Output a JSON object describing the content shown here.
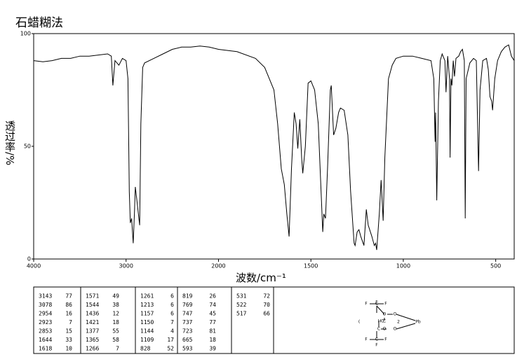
{
  "chart_data": {
    "type": "line",
    "title": "石蜡糊法",
    "xlabel": "波数/cm⁻¹",
    "ylabel": "透过率/%",
    "xlim": [
      4000,
      400
    ],
    "x_break": 2000,
    "xticks": [
      4000,
      3000,
      2000,
      1500,
      1000,
      500
    ],
    "ylim": [
      0,
      100
    ],
    "yticks": [
      0,
      50,
      100
    ],
    "color": "#000000",
    "x": [
      4000,
      3900,
      3800,
      3700,
      3600,
      3500,
      3400,
      3300,
      3200,
      3160,
      3143,
      3120,
      3078,
      3040,
      3000,
      2980,
      2965,
      2954,
      2940,
      2923,
      2910,
      2900,
      2880,
      2853,
      2840,
      2820,
      2800,
      2700,
      2600,
      2500,
      2400,
      2300,
      2200,
      2100,
      2000,
      1900,
      1800,
      1750,
      1700,
      1680,
      1660,
      1644,
      1630,
      1618,
      1605,
      1590,
      1580,
      1571,
      1560,
      1550,
      1544,
      1530,
      1515,
      1500,
      1480,
      1460,
      1445,
      1436,
      1430,
      1421,
      1410,
      1395,
      1390,
      1377,
      1365,
      1350,
      1340,
      1320,
      1300,
      1285,
      1266,
      1261,
      1250,
      1240,
      1230,
      1213,
      1200,
      1190,
      1170,
      1157,
      1150,
      1144,
      1130,
      1120,
      1109,
      1100,
      1080,
      1060,
      1040,
      1000,
      950,
      900,
      850,
      835,
      828,
      825,
      819,
      810,
      800,
      790,
      775,
      769,
      760,
      750,
      747,
      742,
      737,
      730,
      723,
      715,
      700,
      690,
      680,
      670,
      665,
      660,
      640,
      620,
      605,
      593,
      585,
      570,
      550,
      540,
      531,
      522,
      517,
      505,
      490,
      470,
      450,
      430,
      415,
      400
    ],
    "values": [
      88,
      87.5,
      88,
      89,
      89,
      90,
      90,
      90.5,
      91,
      90,
      77,
      88,
      86,
      89,
      88,
      80,
      30,
      16,
      18,
      7,
      20,
      32,
      25,
      15,
      60,
      85,
      87,
      89,
      91,
      93,
      94,
      94,
      94.5,
      94,
      93,
      92,
      89,
      85,
      75,
      60,
      40,
      33,
      20,
      10,
      40,
      65,
      60,
      49,
      62,
      45,
      38,
      50,
      78,
      79,
      75,
      60,
      30,
      12,
      20,
      18,
      40,
      75,
      77,
      55,
      58,
      65,
      67,
      66,
      55,
      30,
      7,
      6,
      12,
      13,
      10,
      6,
      22,
      15,
      10,
      6,
      7,
      4,
      20,
      35,
      17,
      45,
      80,
      86,
      89,
      90,
      90,
      89,
      88,
      80,
      52,
      65,
      26,
      70,
      88,
      91,
      88,
      74,
      90,
      80,
      45,
      80,
      77,
      88,
      81,
      89,
      90,
      92,
      93,
      88,
      18,
      80,
      87,
      89,
      88,
      39,
      75,
      88,
      89,
      84,
      72,
      70,
      66,
      80,
      88,
      92,
      94,
      95,
      90,
      88
    ]
  },
  "peak_table": [
    [
      [
        "3143",
        "77"
      ],
      [
        "3078",
        "86"
      ],
      [
        "2954",
        "16"
      ],
      [
        "2923",
        "7"
      ],
      [
        "2853",
        "15"
      ],
      [
        "1644",
        "33"
      ],
      [
        "1618",
        "10"
      ]
    ],
    [
      [
        "1571",
        "49"
      ],
      [
        "1544",
        "38"
      ],
      [
        "1436",
        "12"
      ],
      [
        "1421",
        "18"
      ],
      [
        "1377",
        "55"
      ],
      [
        "1365",
        "58"
      ],
      [
        "1266",
        "7"
      ]
    ],
    [
      [
        "1261",
        "6"
      ],
      [
        "1213",
        "6"
      ],
      [
        "1157",
        "6"
      ],
      [
        "1150",
        "7"
      ],
      [
        "1144",
        "4"
      ],
      [
        "1109",
        "17"
      ],
      [
        "828",
        "52"
      ]
    ],
    [
      [
        "819",
        "26"
      ],
      [
        "769",
        "74"
      ],
      [
        "747",
        "45"
      ],
      [
        "737",
        "77"
      ],
      [
        "723",
        "81"
      ],
      [
        "665",
        "18"
      ],
      [
        "593",
        "39"
      ]
    ],
    [
      [
        "531",
        "72"
      ],
      [
        "522",
        "70"
      ],
      [
        "517",
        "66"
      ]
    ]
  ],
  "structure": {
    "atoms": [
      "F",
      "F",
      "C",
      "F",
      "O",
      "O",
      "HC",
      "C",
      "C",
      "Pb",
      "O",
      "O",
      "F",
      "C",
      "F",
      "F",
      "2",
      "("
    ]
  }
}
